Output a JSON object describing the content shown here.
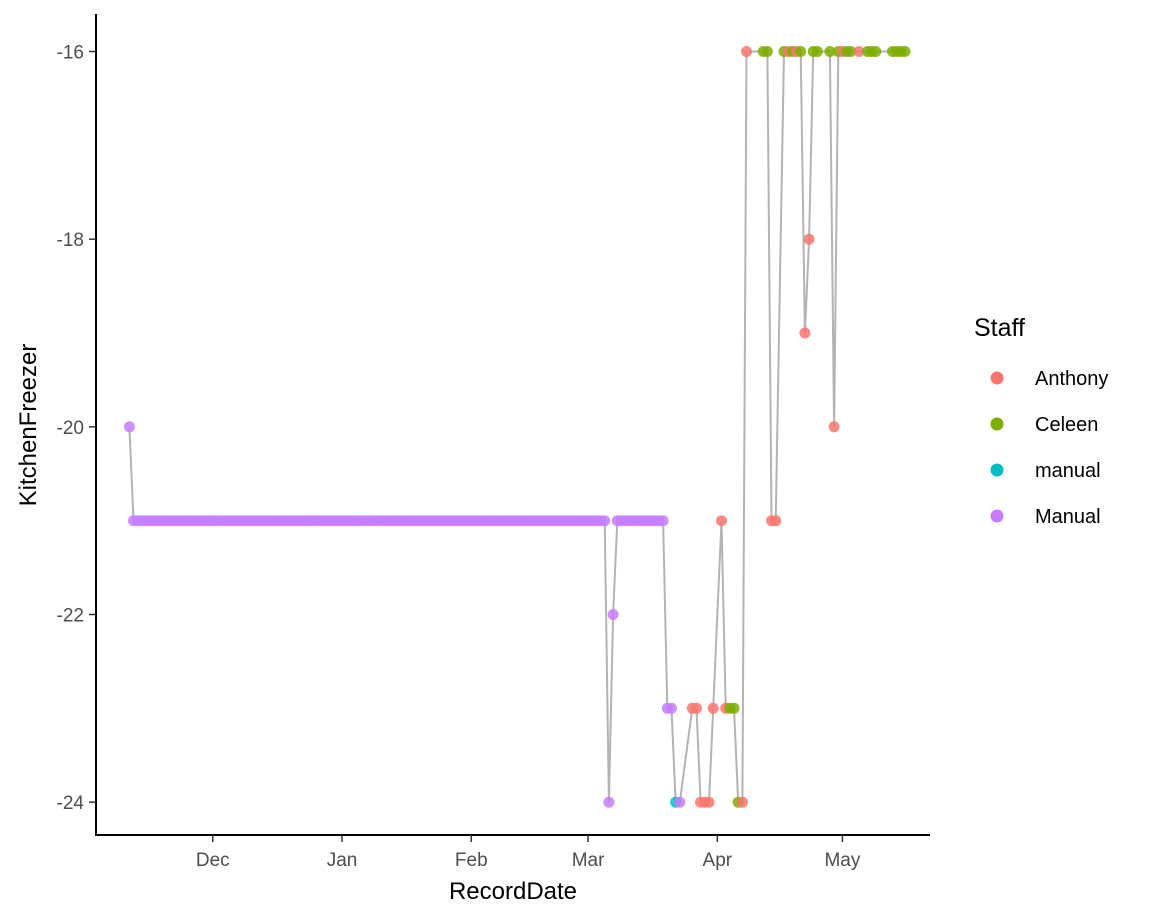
{
  "chart_data": {
    "type": "scatter",
    "xlabel": "RecordDate",
    "ylabel": "KitchenFreezer",
    "x_ticks": [
      "Dec",
      "Jan",
      "Feb",
      "Mar",
      "Apr",
      "May"
    ],
    "y_ticks": [
      "-16",
      "-18",
      "-20",
      "-22",
      "-24"
    ],
    "ylim": [
      -24.35,
      -15.6
    ],
    "xlim": [
      "2020-11-03",
      "2021-05-22"
    ],
    "grid": false,
    "legend": {
      "title": "Staff",
      "placement": "right"
    },
    "connector_line_color": "#b3b3b3",
    "series": [
      {
        "name": "Anthony",
        "color": "#f8766d",
        "points": [
          {
            "x": "2021-03-26",
            "y": -23
          },
          {
            "x": "2021-03-27",
            "y": -23
          },
          {
            "x": "2021-03-28",
            "y": -24
          },
          {
            "x": "2021-03-29",
            "y": -24
          },
          {
            "x": "2021-03-30",
            "y": -24
          },
          {
            "x": "2021-03-31",
            "y": -23
          },
          {
            "x": "2021-04-02",
            "y": -21
          },
          {
            "x": "2021-04-03",
            "y": -23
          },
          {
            "x": "2021-04-07",
            "y": -24
          },
          {
            "x": "2021-04-08",
            "y": -16
          },
          {
            "x": "2021-04-14",
            "y": -21
          },
          {
            "x": "2021-04-15",
            "y": -21
          },
          {
            "x": "2021-04-18",
            "y": -16
          },
          {
            "x": "2021-04-20",
            "y": -16
          },
          {
            "x": "2021-04-22",
            "y": -19
          },
          {
            "x": "2021-04-23",
            "y": -18
          },
          {
            "x": "2021-04-29",
            "y": -20
          },
          {
            "x": "2021-05-01",
            "y": -16
          },
          {
            "x": "2021-05-05",
            "y": -16
          }
        ]
      },
      {
        "name": "Celeen",
        "color": "#7cae00",
        "points": [
          {
            "x": "2021-04-04",
            "y": -23
          },
          {
            "x": "2021-04-05",
            "y": -23
          },
          {
            "x": "2021-04-06",
            "y": -24
          },
          {
            "x": "2021-04-12",
            "y": -16
          },
          {
            "x": "2021-04-13",
            "y": -16
          },
          {
            "x": "2021-04-17",
            "y": -16
          },
          {
            "x": "2021-04-19",
            "y": -16
          },
          {
            "x": "2021-04-21",
            "y": -16
          },
          {
            "x": "2021-04-24",
            "y": -16
          },
          {
            "x": "2021-04-25",
            "y": -16
          },
          {
            "x": "2021-04-28",
            "y": -16
          },
          {
            "x": "2021-04-30",
            "y": -16
          },
          {
            "x": "2021-05-02",
            "y": -16
          },
          {
            "x": "2021-05-03",
            "y": -16
          },
          {
            "x": "2021-05-07",
            "y": -16
          },
          {
            "x": "2021-05-08",
            "y": -16
          },
          {
            "x": "2021-05-09",
            "y": -16
          },
          {
            "x": "2021-05-13",
            "y": -16
          },
          {
            "x": "2021-05-14",
            "y": -16
          },
          {
            "x": "2021-05-15",
            "y": -16
          },
          {
            "x": "2021-05-16",
            "y": -16
          }
        ]
      },
      {
        "name": "manual",
        "color": "#00bfc4",
        "points": [
          {
            "x": "2021-03-22",
            "y": -24
          }
        ]
      },
      {
        "name": "Manual",
        "color": "#c77cff",
        "points_note_omitted": false,
        "segments": [
          {
            "start": "2020-11-12",
            "end": "2021-03-05",
            "y": -21,
            "daily": true
          },
          {
            "start": "2021-03-08",
            "end": "2021-03-19",
            "y": -21,
            "daily": true
          }
        ],
        "points": [
          {
            "x": "2020-11-11",
            "y": -20
          },
          {
            "x": "2021-03-06",
            "y": -24
          },
          {
            "x": "2021-03-07",
            "y": -22
          },
          {
            "x": "2021-03-20",
            "y": -23
          },
          {
            "x": "2021-03-21",
            "y": -23
          },
          {
            "x": "2021-03-23",
            "y": -24
          }
        ]
      }
    ]
  }
}
